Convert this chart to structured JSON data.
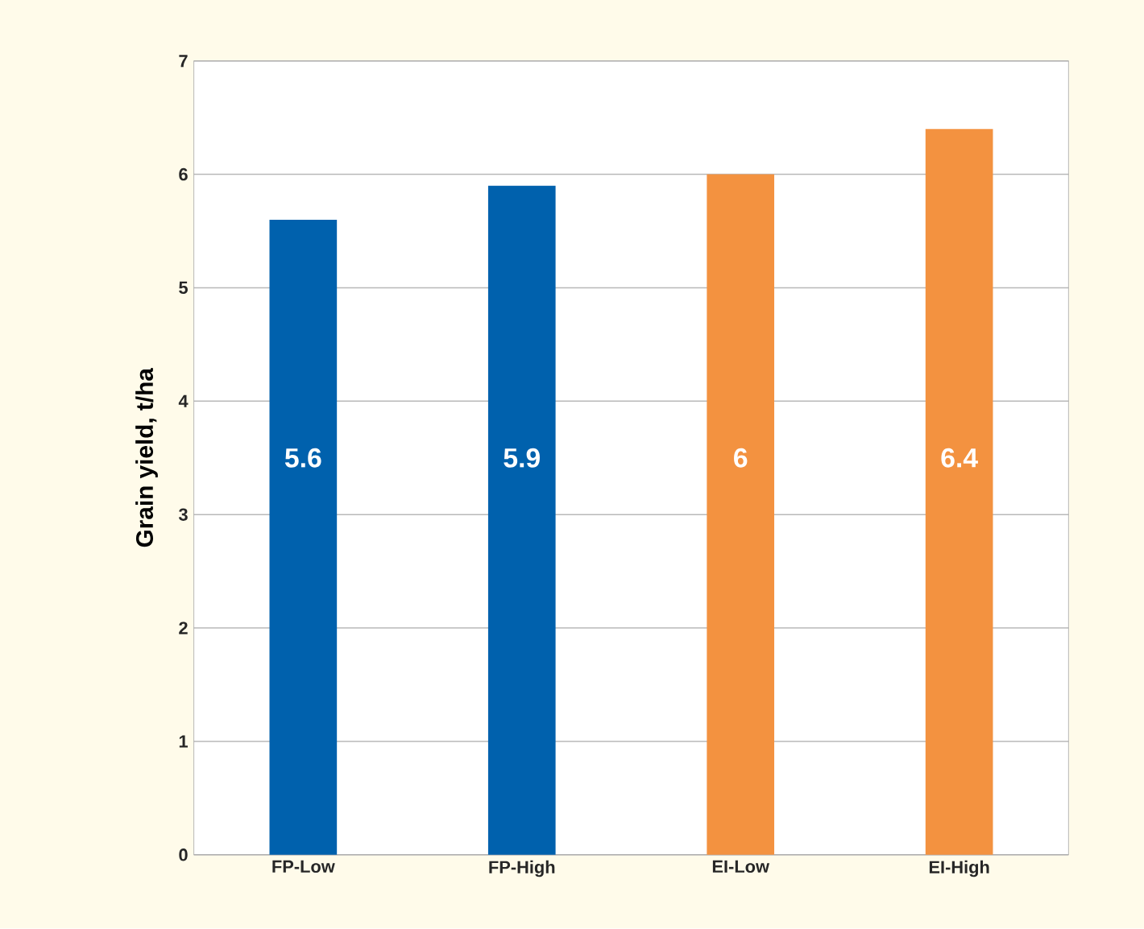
{
  "chart_data": {
    "type": "bar",
    "ylabel": "Grain yield, t/ha",
    "categories": [
      "FP-Low",
      "FP-High",
      "EI-Low",
      "EI-High"
    ],
    "values": [
      5.6,
      5.9,
      6,
      6.4
    ],
    "colors": [
      "#0061ad",
      "#0061ad",
      "#f39240",
      "#f39240"
    ],
    "ylim": [
      0,
      7
    ],
    "yticks": [
      0,
      1,
      2,
      3,
      4,
      5,
      6,
      7
    ],
    "grid": "y",
    "data_labels": true
  }
}
